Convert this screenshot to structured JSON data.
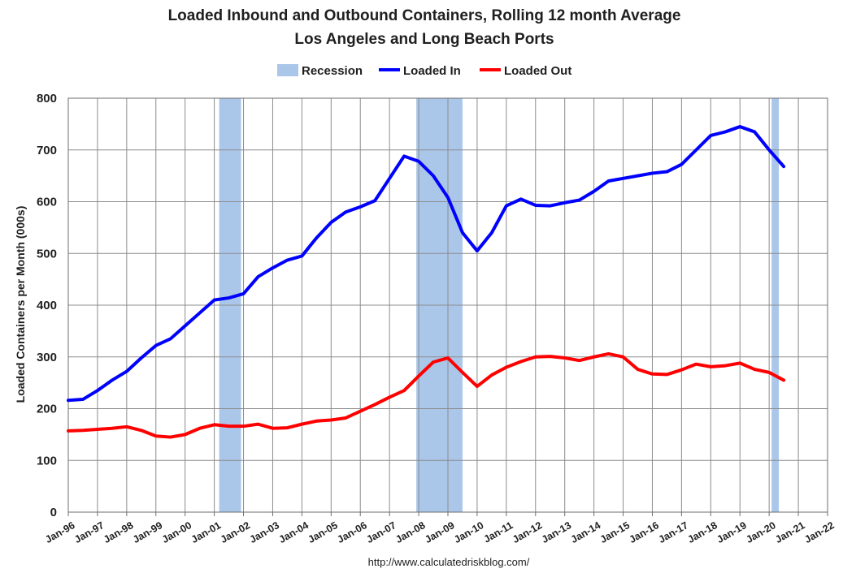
{
  "chart_data": {
    "type": "line",
    "title": "Loaded Inbound and Outbound Containers, Rolling 12 month Average",
    "subtitle": "Los Angeles and Long Beach Ports",
    "ylabel": "Loaded Containers per Month (000s)",
    "xlabel": "",
    "source": "http://www.calculatedriskblog.com/",
    "ylim": [
      0,
      800
    ],
    "yticks": [
      "0",
      "100",
      "200",
      "300",
      "400",
      "500",
      "600",
      "700",
      "800"
    ],
    "xticks": [
      "Jan-96",
      "Jan-97",
      "Jan-98",
      "Jan-99",
      "Jan-00",
      "Jan-01",
      "Jan-02",
      "Jan-03",
      "Jan-04",
      "Jan-05",
      "Jan-06",
      "Jan-07",
      "Jan-08",
      "Jan-09",
      "Jan-10",
      "Jan-11",
      "Jan-12",
      "Jan-13",
      "Jan-14",
      "Jan-15",
      "Jan-16",
      "Jan-17",
      "Jan-18",
      "Jan-19",
      "Jan-20",
      "Jan-21",
      "Jan-22"
    ],
    "xlim": [
      "1996-01",
      "2022-01"
    ],
    "grid": true,
    "legend": {
      "placement": "top-center",
      "entries": [
        "Recession",
        "Loaded In",
        "Loaded Out"
      ]
    },
    "recessions": [
      {
        "start": "2001-03",
        "end": "2001-11"
      },
      {
        "start": "2007-12",
        "end": "2009-06"
      },
      {
        "start": "2020-02",
        "end": "2020-04"
      }
    ],
    "series": [
      {
        "name": "Loaded In",
        "color": "#0000ff",
        "points": [
          [
            "1996-01",
            216
          ],
          [
            "1996-07",
            218
          ],
          [
            "1997-01",
            235
          ],
          [
            "1997-07",
            255
          ],
          [
            "1998-01",
            272
          ],
          [
            "1998-07",
            298
          ],
          [
            "1999-01",
            322
          ],
          [
            "1999-07",
            335
          ],
          [
            "2000-01",
            360
          ],
          [
            "2000-07",
            385
          ],
          [
            "2001-01",
            410
          ],
          [
            "2001-07",
            414
          ],
          [
            "2002-01",
            422
          ],
          [
            "2002-07",
            455
          ],
          [
            "2003-01",
            472
          ],
          [
            "2003-07",
            487
          ],
          [
            "2004-01",
            495
          ],
          [
            "2004-07",
            530
          ],
          [
            "2005-01",
            560
          ],
          [
            "2005-07",
            580
          ],
          [
            "2006-01",
            590
          ],
          [
            "2006-07",
            602
          ],
          [
            "2007-01",
            645
          ],
          [
            "2007-07",
            688
          ],
          [
            "2008-01",
            678
          ],
          [
            "2008-07",
            650
          ],
          [
            "2009-01",
            608
          ],
          [
            "2009-07",
            540
          ],
          [
            "2010-01",
            505
          ],
          [
            "2010-07",
            540
          ],
          [
            "2011-01",
            592
          ],
          [
            "2011-07",
            605
          ],
          [
            "2012-01",
            593
          ],
          [
            "2012-07",
            592
          ],
          [
            "2013-01",
            598
          ],
          [
            "2013-07",
            603
          ],
          [
            "2014-01",
            620
          ],
          [
            "2014-07",
            640
          ],
          [
            "2015-01",
            645
          ],
          [
            "2015-07",
            650
          ],
          [
            "2016-01",
            655
          ],
          [
            "2016-07",
            658
          ],
          [
            "2017-01",
            672
          ],
          [
            "2017-07",
            700
          ],
          [
            "2018-01",
            728
          ],
          [
            "2018-07",
            735
          ],
          [
            "2019-01",
            745
          ],
          [
            "2019-07",
            735
          ],
          [
            "2020-01",
            700
          ],
          [
            "2020-07",
            668
          ]
        ]
      },
      {
        "name": "Loaded Out",
        "color": "#ff0000",
        "points": [
          [
            "1996-01",
            157
          ],
          [
            "1996-07",
            158
          ],
          [
            "1997-01",
            160
          ],
          [
            "1997-07",
            162
          ],
          [
            "1998-01",
            165
          ],
          [
            "1998-07",
            158
          ],
          [
            "1999-01",
            147
          ],
          [
            "1999-07",
            145
          ],
          [
            "2000-01",
            150
          ],
          [
            "2000-07",
            162
          ],
          [
            "2001-01",
            169
          ],
          [
            "2001-07",
            166
          ],
          [
            "2002-01",
            166
          ],
          [
            "2002-07",
            170
          ],
          [
            "2003-01",
            162
          ],
          [
            "2003-07",
            163
          ],
          [
            "2004-01",
            170
          ],
          [
            "2004-07",
            176
          ],
          [
            "2005-01",
            178
          ],
          [
            "2005-07",
            182
          ],
          [
            "2006-01",
            195
          ],
          [
            "2006-07",
            208
          ],
          [
            "2007-01",
            222
          ],
          [
            "2007-07",
            235
          ],
          [
            "2008-01",
            263
          ],
          [
            "2008-07",
            290
          ],
          [
            "2009-01",
            298
          ],
          [
            "2009-07",
            270
          ],
          [
            "2010-01",
            243
          ],
          [
            "2010-07",
            265
          ],
          [
            "2011-01",
            280
          ],
          [
            "2011-07",
            291
          ],
          [
            "2012-01",
            300
          ],
          [
            "2012-07",
            301
          ],
          [
            "2013-01",
            298
          ],
          [
            "2013-07",
            293
          ],
          [
            "2014-01",
            300
          ],
          [
            "2014-07",
            306
          ],
          [
            "2015-01",
            300
          ],
          [
            "2015-07",
            276
          ],
          [
            "2016-01",
            267
          ],
          [
            "2016-07",
            266
          ],
          [
            "2017-01",
            275
          ],
          [
            "2017-07",
            286
          ],
          [
            "2018-01",
            281
          ],
          [
            "2018-07",
            283
          ],
          [
            "2019-01",
            288
          ],
          [
            "2019-07",
            276
          ],
          [
            "2020-01",
            270
          ],
          [
            "2020-07",
            255
          ]
        ]
      }
    ]
  }
}
